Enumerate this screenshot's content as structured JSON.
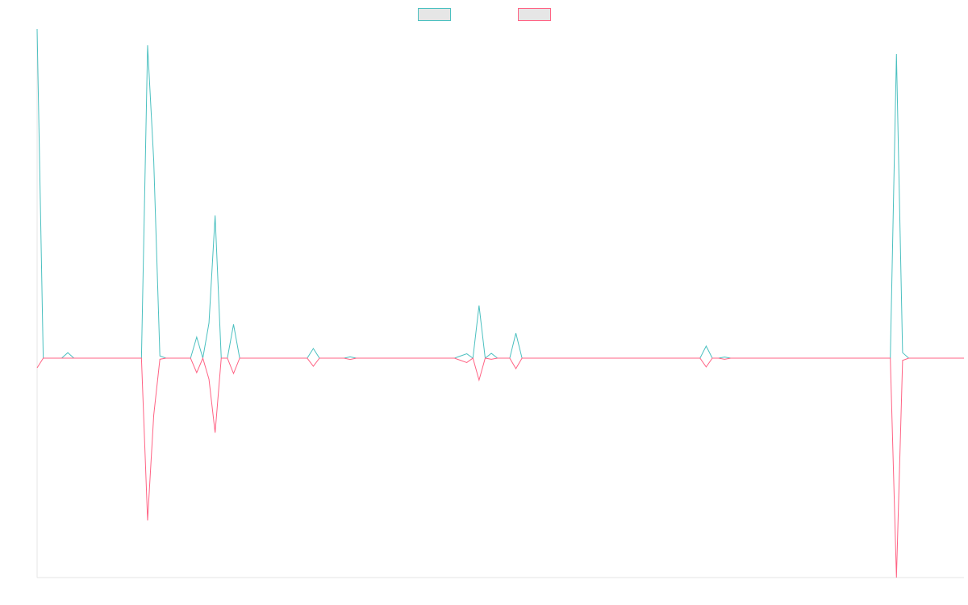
{
  "chart_data": {
    "type": "line",
    "categories": [
      null,
      null,
      null,
      null,
      null,
      null,
      null,
      null,
      null,
      null,
      null,
      null,
      null,
      null,
      null,
      null,
      null,
      null,
      null,
      null,
      null,
      null,
      null,
      null,
      null,
      null,
      null,
      null,
      null,
      null,
      null,
      null,
      null,
      null,
      null,
      null,
      null,
      null,
      null,
      null,
      null,
      null,
      null,
      null,
      null,
      null,
      null,
      null,
      null,
      null,
      null,
      null,
      null,
      null,
      null,
      null,
      null,
      null,
      null,
      null,
      null,
      null,
      null,
      null,
      null,
      null,
      null,
      null,
      null,
      null,
      null,
      null,
      null,
      null,
      null,
      null,
      null,
      null,
      null,
      null,
      null,
      null,
      null,
      null,
      null,
      null,
      null,
      null,
      null,
      null,
      null,
      null,
      null,
      null,
      null,
      null,
      null,
      null,
      null,
      null,
      null,
      null,
      null,
      null,
      null,
      null,
      null,
      null,
      null,
      null,
      null,
      null,
      null,
      null,
      null,
      null,
      null,
      null,
      null,
      null,
      null,
      null,
      null,
      null,
      null,
      null,
      null,
      null,
      null,
      null,
      null,
      null,
      null,
      null,
      null,
      null,
      null,
      null,
      null,
      null,
      null,
      null,
      null,
      null,
      null,
      null,
      null,
      null,
      null,
      null,
      null,
      null
    ],
    "series": [
      {
        "color": "#4bc0c0",
        "values": [
          150,
          0,
          0,
          0,
          0,
          2.5,
          0,
          0,
          0,
          0,
          0,
          0,
          0,
          0,
          0,
          0,
          0,
          0,
          142.6,
          90,
          1,
          0,
          0,
          0,
          0,
          0,
          9.6,
          0,
          16,
          65,
          0,
          0,
          15.4,
          0,
          0,
          0,
          0,
          0,
          0,
          0,
          0,
          0,
          0,
          0,
          0,
          4.4,
          0,
          0,
          0,
          0,
          0,
          0.6,
          0,
          0,
          0,
          0,
          0,
          0,
          0,
          0,
          0,
          0,
          0,
          0,
          0,
          0,
          0,
          0,
          0,
          1,
          2,
          0,
          24,
          0,
          2.2,
          0,
          0,
          0,
          11.4,
          0,
          0,
          0,
          0,
          0,
          0,
          0,
          0,
          0,
          0,
          0,
          0,
          0,
          0,
          0,
          0,
          0,
          0,
          0,
          0,
          0,
          0,
          0,
          0,
          0,
          0,
          0,
          0,
          0,
          0,
          5.5,
          0,
          0,
          0.5,
          0,
          0,
          0,
          0,
          0,
          0,
          0,
          0,
          0,
          0,
          0,
          0,
          0,
          0,
          0,
          0,
          0,
          0,
          0,
          0,
          0,
          0,
          0,
          0,
          0,
          0,
          0,
          138.6,
          2.5,
          0,
          0,
          0,
          0,
          0,
          0,
          0,
          0,
          0,
          0
        ]
      },
      {
        "color": "#ff6384",
        "values": [
          -4.4,
          0,
          0,
          0,
          0,
          0,
          0,
          0,
          0,
          0,
          0,
          0,
          0,
          0,
          0,
          0,
          0,
          0,
          -74,
          -26,
          -0.5,
          0,
          0,
          0,
          0,
          0,
          -6.6,
          0,
          -9.6,
          -34,
          0,
          0,
          -7,
          0,
          0,
          0,
          0,
          0,
          0,
          0,
          0,
          0,
          0,
          0,
          0,
          -3.7,
          0,
          0,
          0,
          0,
          0,
          -0.6,
          0,
          0,
          0,
          0,
          0,
          0,
          0,
          0,
          0,
          0,
          0,
          0,
          0,
          0,
          0,
          0,
          0,
          -1,
          -2,
          0,
          -10,
          0,
          -0.5,
          0,
          0,
          0,
          -4.8,
          0,
          0,
          0,
          0,
          0,
          0,
          0,
          0,
          0,
          0,
          0,
          0,
          0,
          0,
          0,
          0,
          0,
          0,
          0,
          0,
          0,
          0,
          0,
          0,
          0,
          0,
          0,
          0,
          0,
          0,
          -4,
          0,
          0,
          -0.5,
          0,
          0,
          0,
          0,
          0,
          0,
          0,
          0,
          0,
          0,
          0,
          0,
          0,
          0,
          0,
          0,
          0,
          0,
          0,
          0,
          0,
          0,
          0,
          0,
          0,
          0,
          0,
          -100,
          -1,
          0,
          0,
          0,
          0,
          0,
          0,
          0,
          0,
          0,
          0
        ]
      }
    ],
    "ylim": [
      -100,
      150
    ]
  }
}
